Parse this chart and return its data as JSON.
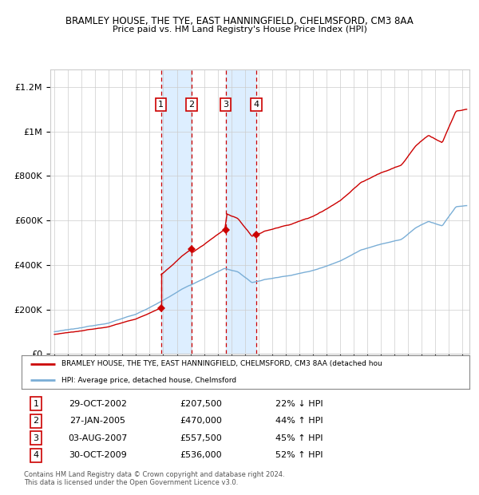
{
  "title1": "BRAMLEY HOUSE, THE TYE, EAST HANNINGFIELD, CHELMSFORD, CM3 8AA",
  "title2": "Price paid vs. HM Land Registry's House Price Index (HPI)",
  "ylabel_ticks": [
    "£0",
    "£200K",
    "£400K",
    "£600K",
    "£800K",
    "£1M",
    "£1.2M"
  ],
  "ytick_values": [
    0,
    200000,
    400000,
    600000,
    800000,
    1000000,
    1200000
  ],
  "ylim": [
    0,
    1280000
  ],
  "xlim_start": 1994.7,
  "xlim_end": 2025.5,
  "transactions": [
    {
      "num": 1,
      "date": "29-OCT-2002",
      "price": 207500,
      "pct": "22%",
      "dir": "↓",
      "year": 2002.83
    },
    {
      "num": 2,
      "date": "27-JAN-2005",
      "price": 470000,
      "pct": "44%",
      "dir": "↑",
      "year": 2005.08
    },
    {
      "num": 3,
      "date": "03-AUG-2007",
      "price": 557500,
      "pct": "45%",
      "dir": "↑",
      "year": 2007.58
    },
    {
      "num": 4,
      "date": "30-OCT-2009",
      "price": 536000,
      "pct": "52%",
      "dir": "↑",
      "year": 2009.83
    }
  ],
  "legend_line1": "BRAMLEY HOUSE, THE TYE, EAST HANNINGFIELD, CHELMSFORD, CM3 8AA (detached hou",
  "legend_line2": "HPI: Average price, detached house, Chelmsford",
  "footer1": "Contains HM Land Registry data © Crown copyright and database right 2024.",
  "footer2": "This data is licensed under the Open Government Licence v3.0.",
  "red_color": "#cc0000",
  "blue_color": "#7aaed6",
  "shade_color": "#ddeeff",
  "grid_color": "#cccccc",
  "background_color": "#ffffff"
}
